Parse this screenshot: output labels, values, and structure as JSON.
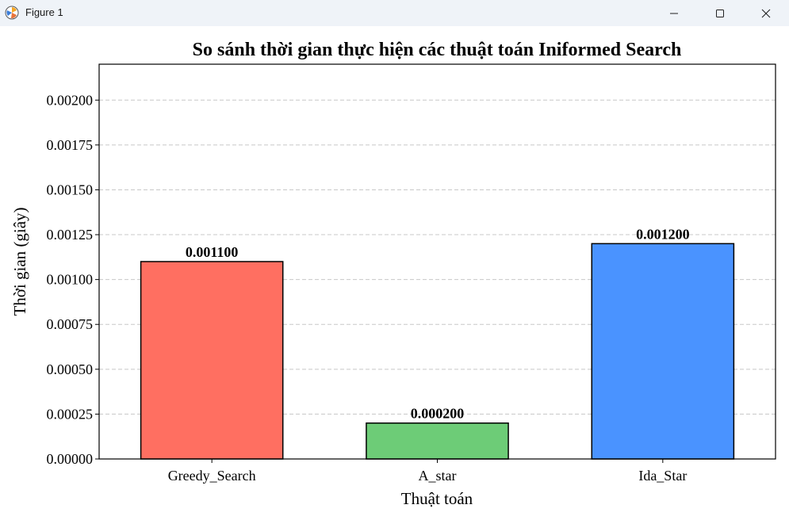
{
  "window": {
    "title": "Figure 1"
  },
  "chart_data": {
    "type": "bar",
    "title": "So sánh thời gian thực hiện các thuật toán Iniformed Search",
    "xlabel": "Thuật toán",
    "ylabel": "Thời gian (giây)",
    "categories": [
      "Greedy_Search",
      "A_star",
      "Ida_Star"
    ],
    "values": [
      0.0011,
      0.0002,
      0.0012
    ],
    "value_labels": [
      "0.001100",
      "0.000200",
      "0.001200"
    ],
    "colors": [
      "#ff6f61",
      "#6dcc77",
      "#4a93ff"
    ],
    "ylim": [
      0,
      0.0022
    ],
    "yticks": [
      0,
      0.00025,
      0.0005,
      0.00075,
      0.001,
      0.00125,
      0.0015,
      0.00175,
      0.002
    ],
    "ytick_labels": [
      "0.00000",
      "0.00025",
      "0.00050",
      "0.00075",
      "0.00100",
      "0.00125",
      "0.00150",
      "0.00175",
      "0.00200"
    ],
    "grid": "y dashed",
    "legend": "none"
  }
}
